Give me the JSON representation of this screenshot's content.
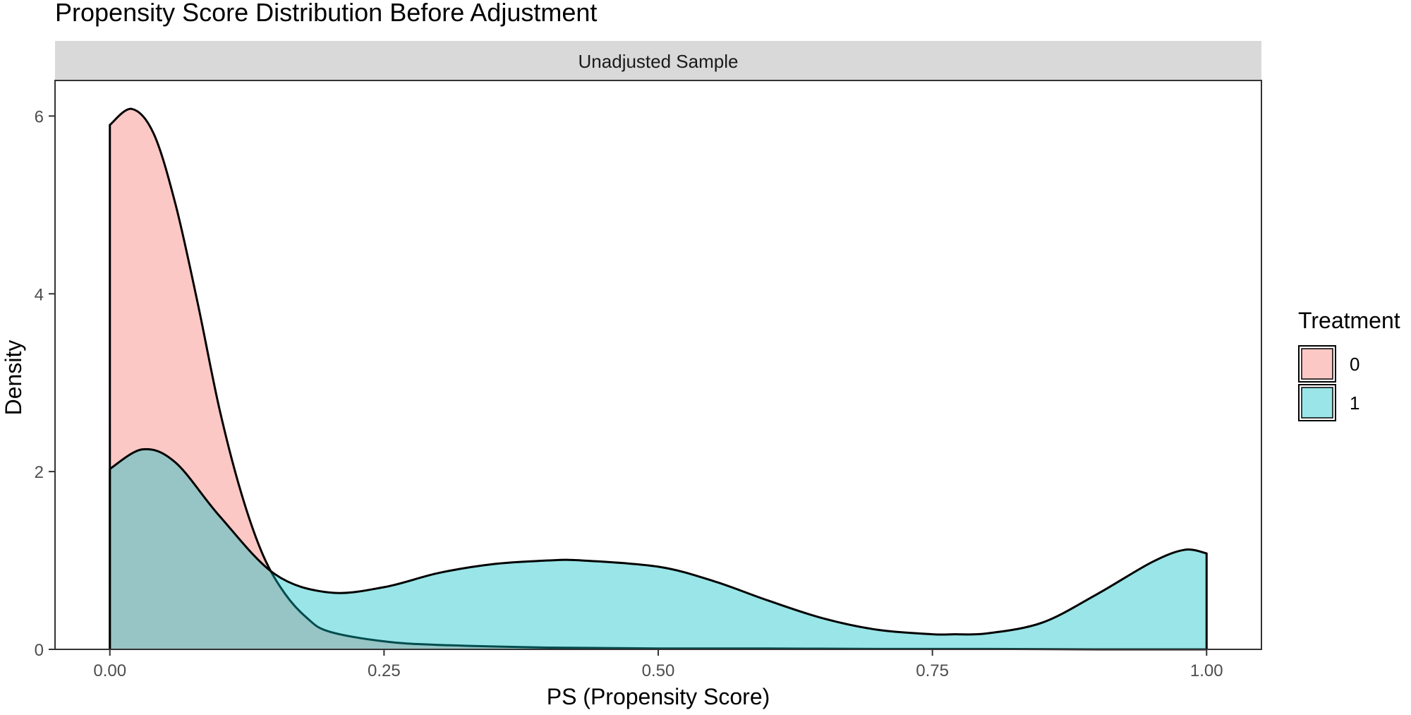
{
  "chart_data": {
    "type": "area",
    "title": "Propensity Score Distribution Before Adjustment",
    "facet_label": "Unadjusted Sample",
    "xlabel": "PS (Propensity Score)",
    "ylabel": "Density",
    "xlim": [
      -0.05,
      1.05
    ],
    "ylim": [
      0,
      6.4
    ],
    "x_ticks": [
      0,
      0.25,
      0.5,
      0.75,
      1.0
    ],
    "x_tick_labels": [
      "0.00",
      "0.25",
      "0.50",
      "0.75",
      "1.00"
    ],
    "y_ticks": [
      0,
      2,
      4,
      6
    ],
    "y_tick_labels": [
      "0",
      "2",
      "4",
      "6"
    ],
    "grid": false,
    "legend": {
      "title": "Treatment",
      "position": "right",
      "items": [
        {
          "label": "0",
          "color": "#F8766D"
        },
        {
          "label": "1",
          "color": "#00BFC4"
        }
      ]
    },
    "series": [
      {
        "name": "0",
        "color": "#F8766D",
        "x": [
          0.0,
          0.02,
          0.04,
          0.06,
          0.08,
          0.1,
          0.12,
          0.14,
          0.16,
          0.18,
          0.2,
          0.25,
          0.3,
          0.4,
          0.5,
          0.6,
          0.7,
          0.8,
          0.9,
          1.0
        ],
        "y": [
          5.9,
          6.08,
          5.8,
          5.0,
          3.9,
          2.7,
          1.75,
          1.05,
          0.62,
          0.35,
          0.2,
          0.09,
          0.05,
          0.02,
          0.01,
          0.01,
          0.005,
          0.005,
          0.0,
          0.0
        ]
      },
      {
        "name": "1",
        "color": "#00BFC4",
        "x": [
          0.0,
          0.03,
          0.06,
          0.1,
          0.15,
          0.2,
          0.25,
          0.3,
          0.35,
          0.4,
          0.43,
          0.5,
          0.55,
          0.6,
          0.65,
          0.7,
          0.75,
          0.77,
          0.8,
          0.85,
          0.9,
          0.95,
          0.98,
          1.0
        ],
        "y": [
          2.03,
          2.25,
          2.1,
          1.5,
          0.85,
          0.64,
          0.7,
          0.86,
          0.96,
          1.0,
          1.0,
          0.93,
          0.77,
          0.55,
          0.35,
          0.22,
          0.17,
          0.17,
          0.18,
          0.3,
          0.62,
          0.98,
          1.12,
          1.08
        ]
      }
    ]
  }
}
